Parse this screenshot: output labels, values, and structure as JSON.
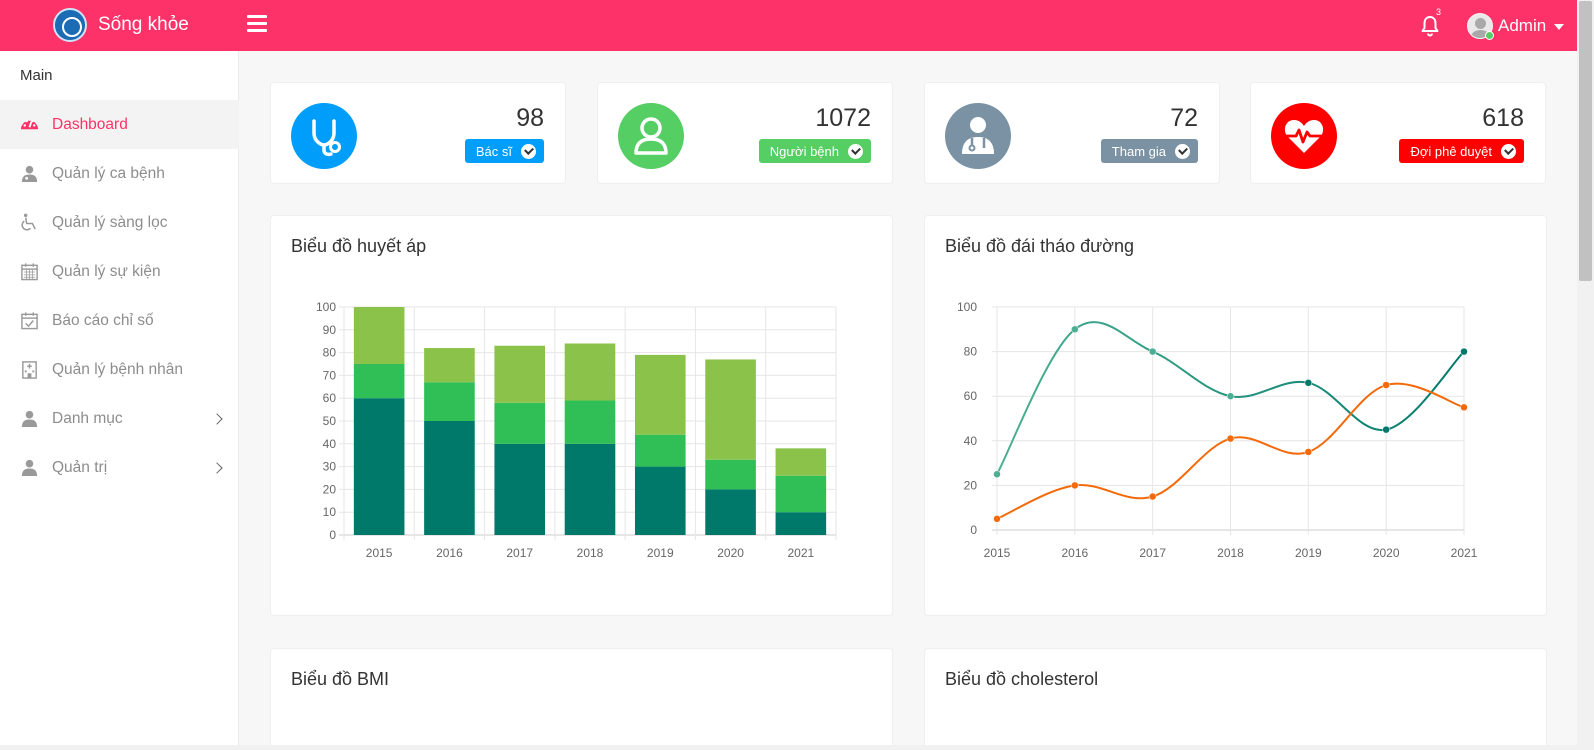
{
  "header": {
    "brand": "Sống khỏe",
    "notification_count": "3",
    "user_name": "Admin"
  },
  "sidebar": {
    "section_title": "Main",
    "items": [
      {
        "label": "Dashboard",
        "icon": "dashboard-icon"
      },
      {
        "label": "Quản lý ca bệnh",
        "icon": "doctor-user-icon"
      },
      {
        "label": "Quản lý sàng lọc",
        "icon": "wheelchair-icon"
      },
      {
        "label": "Quản lý sự kiện",
        "icon": "calendar-icon"
      },
      {
        "label": "Báo cáo chỉ số",
        "icon": "calendar-check-icon"
      },
      {
        "label": "Quản lý bệnh nhân",
        "icon": "hospital-icon"
      },
      {
        "label": "Danh mục",
        "icon": "user-icon"
      },
      {
        "label": "Quản trị",
        "icon": "user-icon"
      }
    ]
  },
  "stats": [
    {
      "value": "98",
      "label": "Bác sĩ",
      "color": "#009efb",
      "icon": "stethoscope-icon"
    },
    {
      "value": "1072",
      "label": "Người bệnh",
      "color": "#55ce63",
      "icon": "user-outline-icon"
    },
    {
      "value": "72",
      "label": "Tham gia",
      "color": "#7a92a3",
      "icon": "doctor-icon"
    },
    {
      "value": "618",
      "label": "Đợi phê duyệt",
      "color": "#ff0000",
      "icon": "heartbeat-icon"
    }
  ],
  "charts": {
    "blood_pressure_title": "Biểu đồ huyết áp",
    "diabetes_title": "Biểu đồ đái tháo đường",
    "bmi_title": "Biểu đồ BMI",
    "cholesterol_title": "Biểu đồ cholesterol"
  },
  "chart_data": [
    {
      "type": "bar",
      "stacked": true,
      "title": "Biểu đồ huyết áp",
      "categories": [
        "2015",
        "2016",
        "2017",
        "2018",
        "2019",
        "2020",
        "2021"
      ],
      "series": [
        {
          "values": [
            60,
            50,
            40,
            40,
            30,
            20,
            10
          ],
          "color": "#00796b"
        },
        {
          "values": [
            15,
            17,
            18,
            19,
            14,
            13,
            16
          ],
          "color": "#2fbf56"
        },
        {
          "values": [
            25,
            15,
            25,
            25,
            35,
            44,
            12
          ],
          "color": "#8bc34a"
        }
      ],
      "ylim": [
        0,
        100
      ],
      "yticks": [
        0,
        10,
        20,
        30,
        40,
        50,
        60,
        70,
        80,
        90,
        100
      ],
      "grid": true
    },
    {
      "type": "line",
      "title": "Biểu đồ đái tháo đường",
      "categories": [
        "2015",
        "2016",
        "2017",
        "2018",
        "2019",
        "2020",
        "2021"
      ],
      "series": [
        {
          "values": [
            25,
            90,
            80,
            60,
            66,
            45,
            80
          ],
          "color": "#00796b",
          "color_left": "#4caf93"
        },
        {
          "values": [
            5,
            20,
            15,
            41,
            35,
            65,
            55
          ],
          "color": "#f46a0a"
        }
      ],
      "ylim": [
        0,
        100
      ],
      "yticks": [
        0,
        20,
        40,
        60,
        80,
        100
      ],
      "grid": true
    }
  ]
}
